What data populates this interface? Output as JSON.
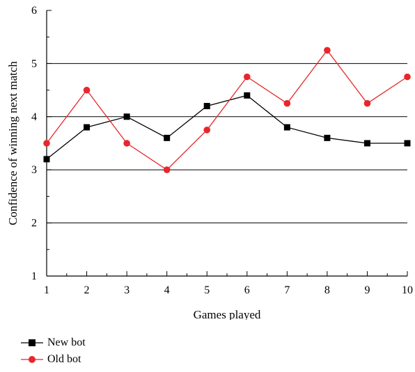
{
  "chart_data": {
    "type": "line",
    "title": "",
    "xlabel": "Games played",
    "ylabel": "Confidence of winning next match",
    "x": [
      1,
      2,
      3,
      4,
      5,
      6,
      7,
      8,
      9,
      10
    ],
    "xlim": [
      1,
      10
    ],
    "ylim": [
      1,
      6
    ],
    "xticks": [
      "1",
      "2",
      "3",
      "4",
      "5",
      "6",
      "7",
      "8",
      "9",
      "10"
    ],
    "yticks": [
      "1",
      "2",
      "3",
      "4",
      "5",
      "6"
    ],
    "grid": "horizontal",
    "legend_position": "bottom-left",
    "series": [
      {
        "name": "New bot",
        "color": "#000000",
        "marker": "square",
        "values": [
          3.2,
          3.8,
          4.0,
          3.6,
          4.2,
          4.4,
          3.8,
          3.6,
          3.5,
          3.5
        ]
      },
      {
        "name": "Old bot",
        "color": "#e8262b",
        "marker": "circle",
        "values": [
          3.5,
          4.5,
          3.5,
          3.0,
          3.75,
          4.75,
          4.25,
          5.25,
          4.25,
          4.75
        ]
      }
    ]
  }
}
